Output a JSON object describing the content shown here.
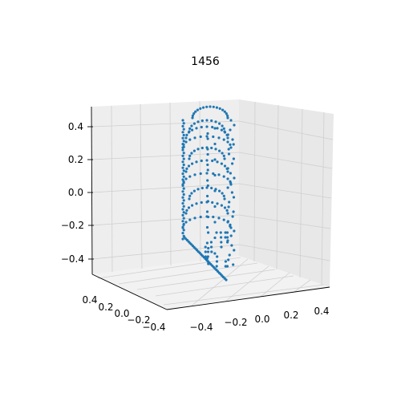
{
  "chart_data": {
    "type": "scatter",
    "projection": "3d",
    "title": "1456",
    "xlabel": "",
    "ylabel": "",
    "zlabel": "",
    "xlim": [
      -0.5,
      0.5
    ],
    "ylim": [
      -0.5,
      0.5
    ],
    "zlim": [
      -0.5,
      0.5
    ],
    "x_ticks": [
      "−0.4",
      "−0.2",
      "0.0",
      "0.2",
      "0.4"
    ],
    "y_ticks": [
      "0.4",
      "0.2",
      "0.0",
      "−0.2",
      "−0.4"
    ],
    "z_ticks": [
      "0.4",
      "0.2",
      "0.0",
      "−0.2",
      "−0.4"
    ],
    "grid": true,
    "marker_color": "#1f77b4",
    "series": [
      {
        "x_range": [
          0.0,
          0.25
        ],
        "y_range": [
          -0.38,
          0.38
        ],
        "z_range": [
          -0.38,
          0.5
        ],
        "description_shape": "half-elliptical shell arcs stacked along z with a dense vertical edge and a diagonal streak at the bottom"
      }
    ]
  }
}
